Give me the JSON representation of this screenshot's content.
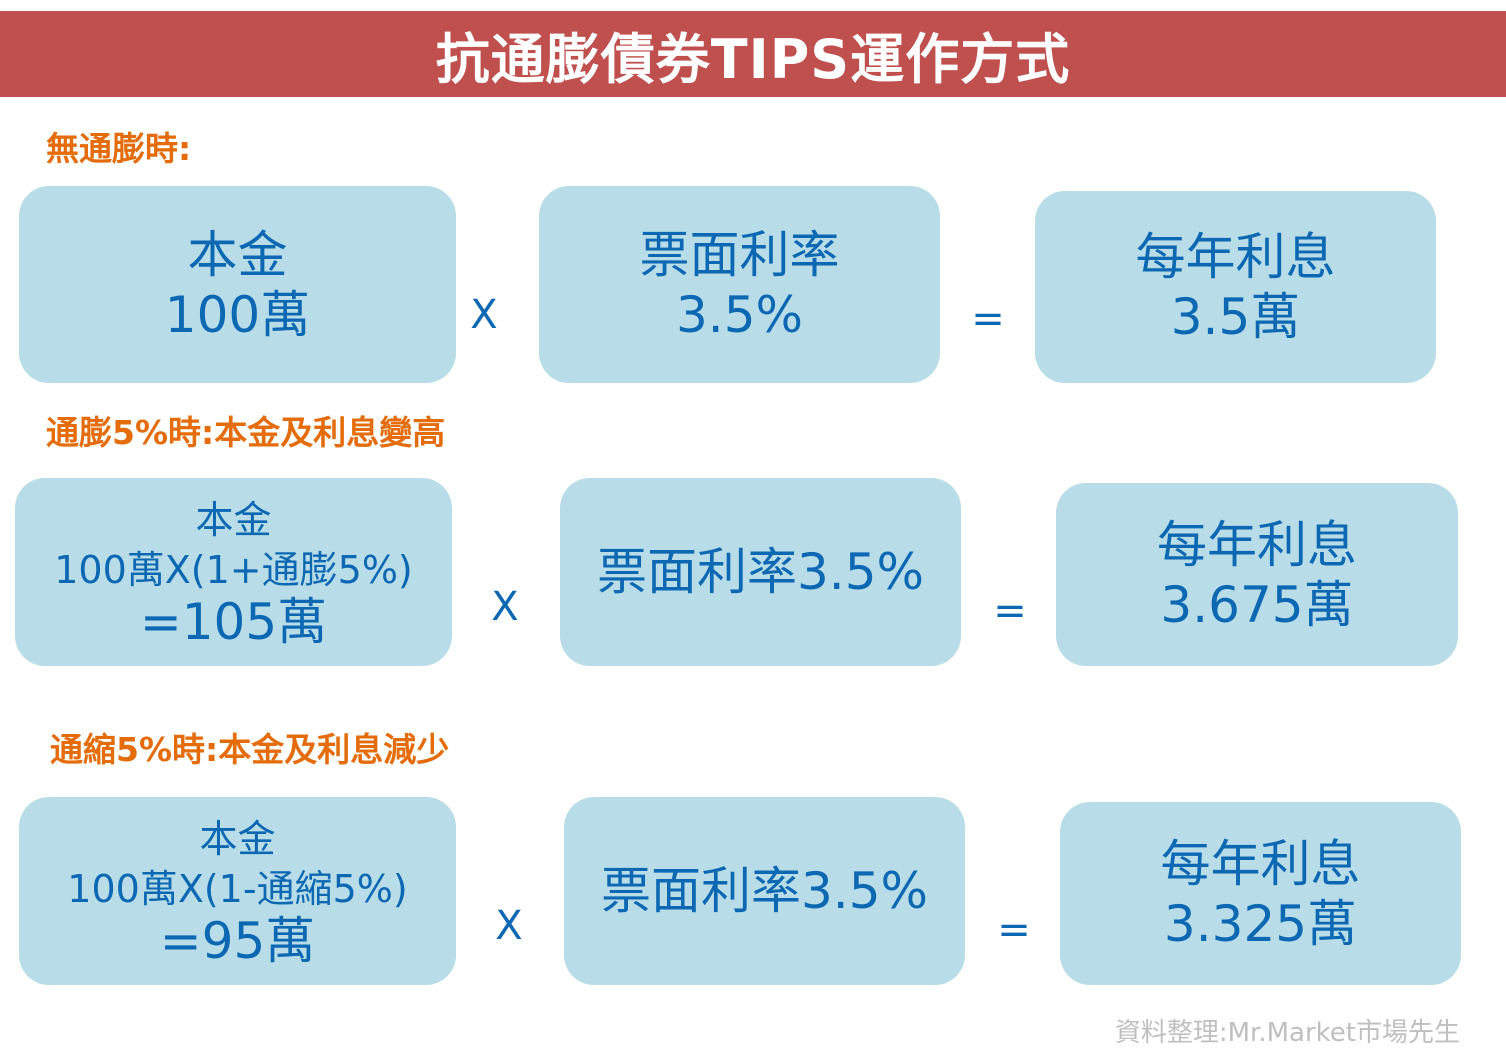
{
  "title": "抗通膨債券TIPS運作方式",
  "sections": [
    {
      "label": "無通膨時:",
      "principal": [
        "本金",
        "100萬"
      ],
      "operator1": "X",
      "rate": [
        "票面利率",
        "3.5%"
      ],
      "operator2": "=",
      "interest": [
        "每年利息",
        "3.5萬"
      ]
    },
    {
      "label": "通膨5%時:本金及利息變高",
      "principal": [
        "本金",
        "100萬X(1+通膨5%)",
        "=105萬"
      ],
      "operator1": "X",
      "rate": [
        "票面利率3.5%"
      ],
      "operator2": "=",
      "interest": [
        "每年利息",
        "3.675萬"
      ]
    },
    {
      "label": "通縮5%時:本金及利息減少",
      "principal": [
        "本金",
        "100萬X(1-通縮5%)",
        "=95萬"
      ],
      "operator1": "X",
      "rate": [
        "票面利率3.5%"
      ],
      "operator2": "=",
      "interest": [
        "每年利息",
        "3.325萬"
      ]
    }
  ],
  "source": "資料整理:Mr.Market市場先生",
  "colors": {
    "banner": "#c0504d",
    "section_label": "#e46c0a",
    "box_fill": "#b8dde8",
    "box_text": "#0c68b3",
    "source_text": "#bfbfbf"
  }
}
